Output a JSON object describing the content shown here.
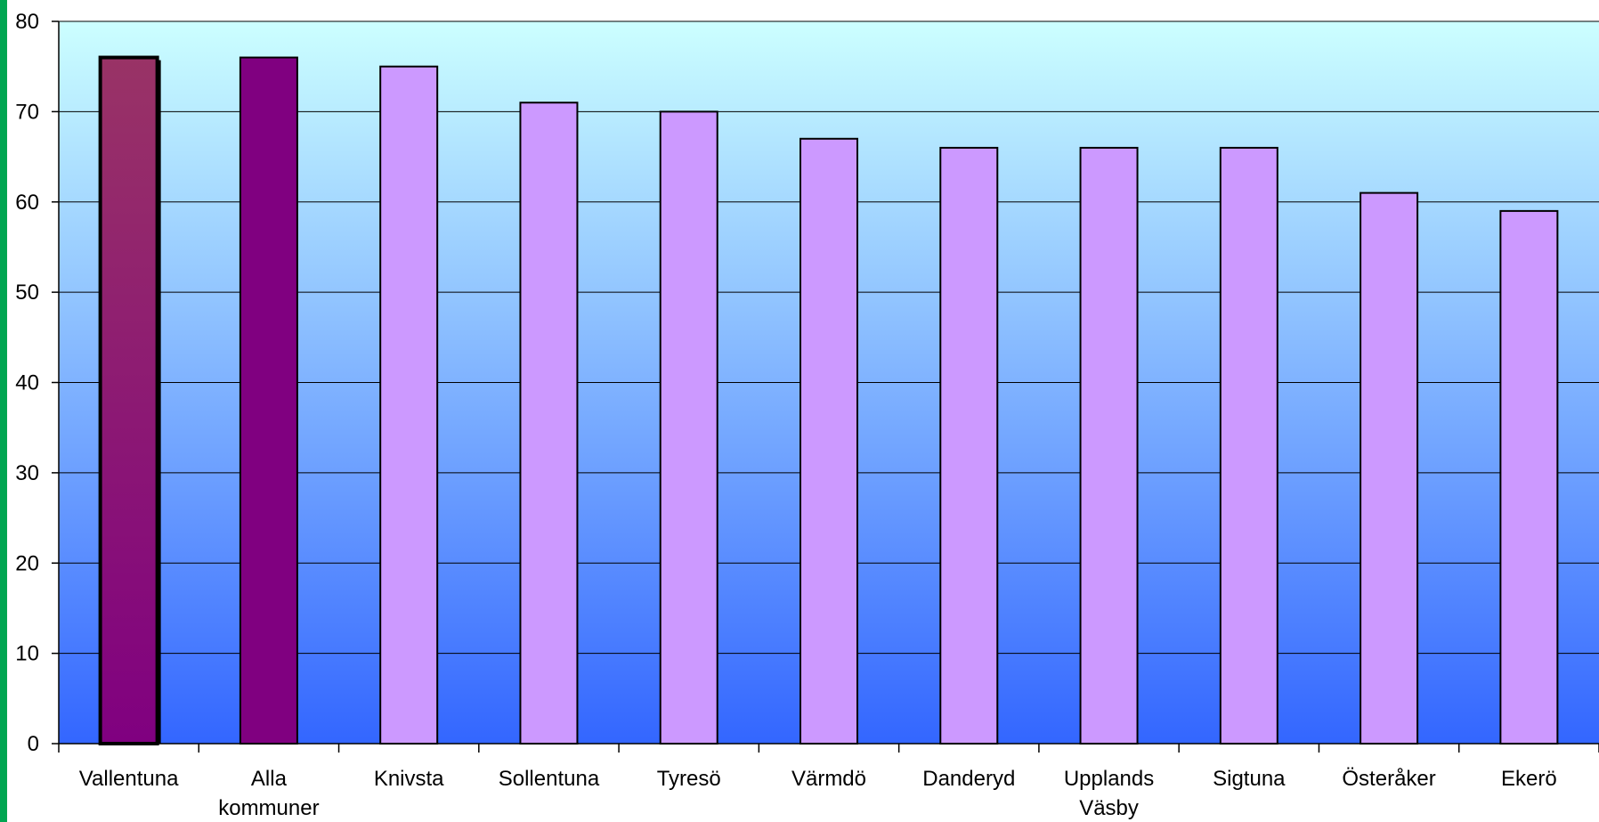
{
  "chart_data": {
    "type": "bar",
    "categories": [
      "Vallentuna",
      "Alla kommuner",
      "Knivsta",
      "Sollentuna",
      "Tyresö",
      "Värmdö",
      "Danderyd",
      "Upplands Väsby",
      "Sigtuna",
      "Österåker",
      "Ekerö"
    ],
    "category_lines": [
      [
        "Vallentuna"
      ],
      [
        "Alla",
        "kommuner"
      ],
      [
        "Knivsta"
      ],
      [
        "Sollentuna"
      ],
      [
        "Tyresö"
      ],
      [
        "Värmdö"
      ],
      [
        "Danderyd"
      ],
      [
        "Upplands",
        "Väsby"
      ],
      [
        "Sigtuna"
      ],
      [
        "Österåker"
      ],
      [
        "Ekerö"
      ]
    ],
    "values": [
      76,
      76,
      75,
      71,
      70,
      67,
      66,
      66,
      66,
      61,
      59
    ],
    "ylim": [
      0,
      80
    ],
    "yticks": [
      0,
      10,
      20,
      30,
      40,
      50,
      60,
      70,
      80
    ],
    "grid": true,
    "title": "",
    "xlabel": "",
    "ylabel": "",
    "colors": {
      "highlight_bar": "#800080",
      "highlight_bar_top": "#993366",
      "average_bar": "#800080",
      "bar": "#cc99ff",
      "plot_bg_top": "#ccffff",
      "plot_bg_bottom": "#3366ff",
      "left_accent": "#00a651"
    }
  }
}
